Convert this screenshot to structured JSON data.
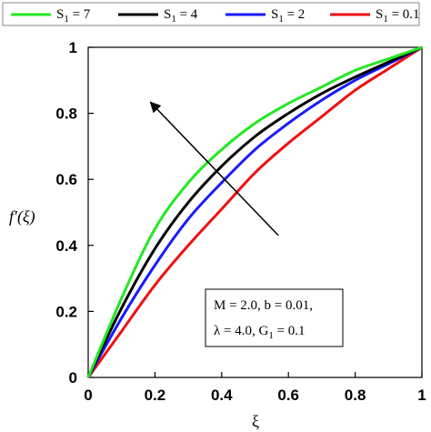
{
  "chart_data": {
    "type": "line",
    "xlabel": "ξ",
    "ylabel": "f′(ξ)",
    "xlim": [
      0,
      1
    ],
    "ylim": [
      0,
      1
    ],
    "xticks": [
      0,
      0.2,
      0.4,
      0.6,
      0.8,
      1
    ],
    "yticks": [
      0,
      0.2,
      0.4,
      0.6,
      0.8,
      1
    ],
    "xtick_labels": [
      "0",
      "0.2",
      "0.4",
      "0.6",
      "0.8",
      "1"
    ],
    "ytick_labels": [
      "0",
      "0.2",
      "0.4",
      "0.6",
      "0.8",
      "1"
    ],
    "grid": false,
    "legend_position": "top",
    "x": [
      0,
      0.1,
      0.2,
      0.3,
      0.4,
      0.5,
      0.6,
      0.7,
      0.8,
      0.9,
      1.0
    ],
    "series": [
      {
        "name": "S1 = 7",
        "label_main": "S",
        "label_sub": "1",
        "label_rest": " = 7",
        "color": "#22e822",
        "values": [
          0,
          0.24,
          0.45,
          0.59,
          0.69,
          0.77,
          0.83,
          0.88,
          0.93,
          0.965,
          1.0
        ]
      },
      {
        "name": "S1 = 4",
        "label_main": "S",
        "label_sub": "1",
        "label_rest": " = 4",
        "color": "#000000",
        "values": [
          0,
          0.21,
          0.39,
          0.53,
          0.64,
          0.73,
          0.8,
          0.86,
          0.91,
          0.955,
          1.0
        ]
      },
      {
        "name": "S1 = 2",
        "label_main": "S",
        "label_sub": "1",
        "label_rest": " = 2",
        "color": "#1a1aff",
        "values": [
          0,
          0.18,
          0.34,
          0.48,
          0.59,
          0.69,
          0.77,
          0.84,
          0.9,
          0.95,
          1.0
        ]
      },
      {
        "name": "S1 = 0.1",
        "label_main": "S",
        "label_sub": "1",
        "label_rest": " = 0.1",
        "color": "#ee1111",
        "values": [
          0,
          0.14,
          0.28,
          0.4,
          0.51,
          0.62,
          0.71,
          0.79,
          0.87,
          0.935,
          1.0
        ]
      }
    ],
    "annotation": {
      "line1": "M = 2.0, b = 0.01,",
      "line2_main": "λ = 4.0, G",
      "line2_sub": "1",
      "line2_rest": " = 0.1"
    },
    "arrow": {
      "from": [
        0.57,
        0.43
      ],
      "to": [
        0.19,
        0.83
      ],
      "meaning": "increasing S1"
    }
  }
}
